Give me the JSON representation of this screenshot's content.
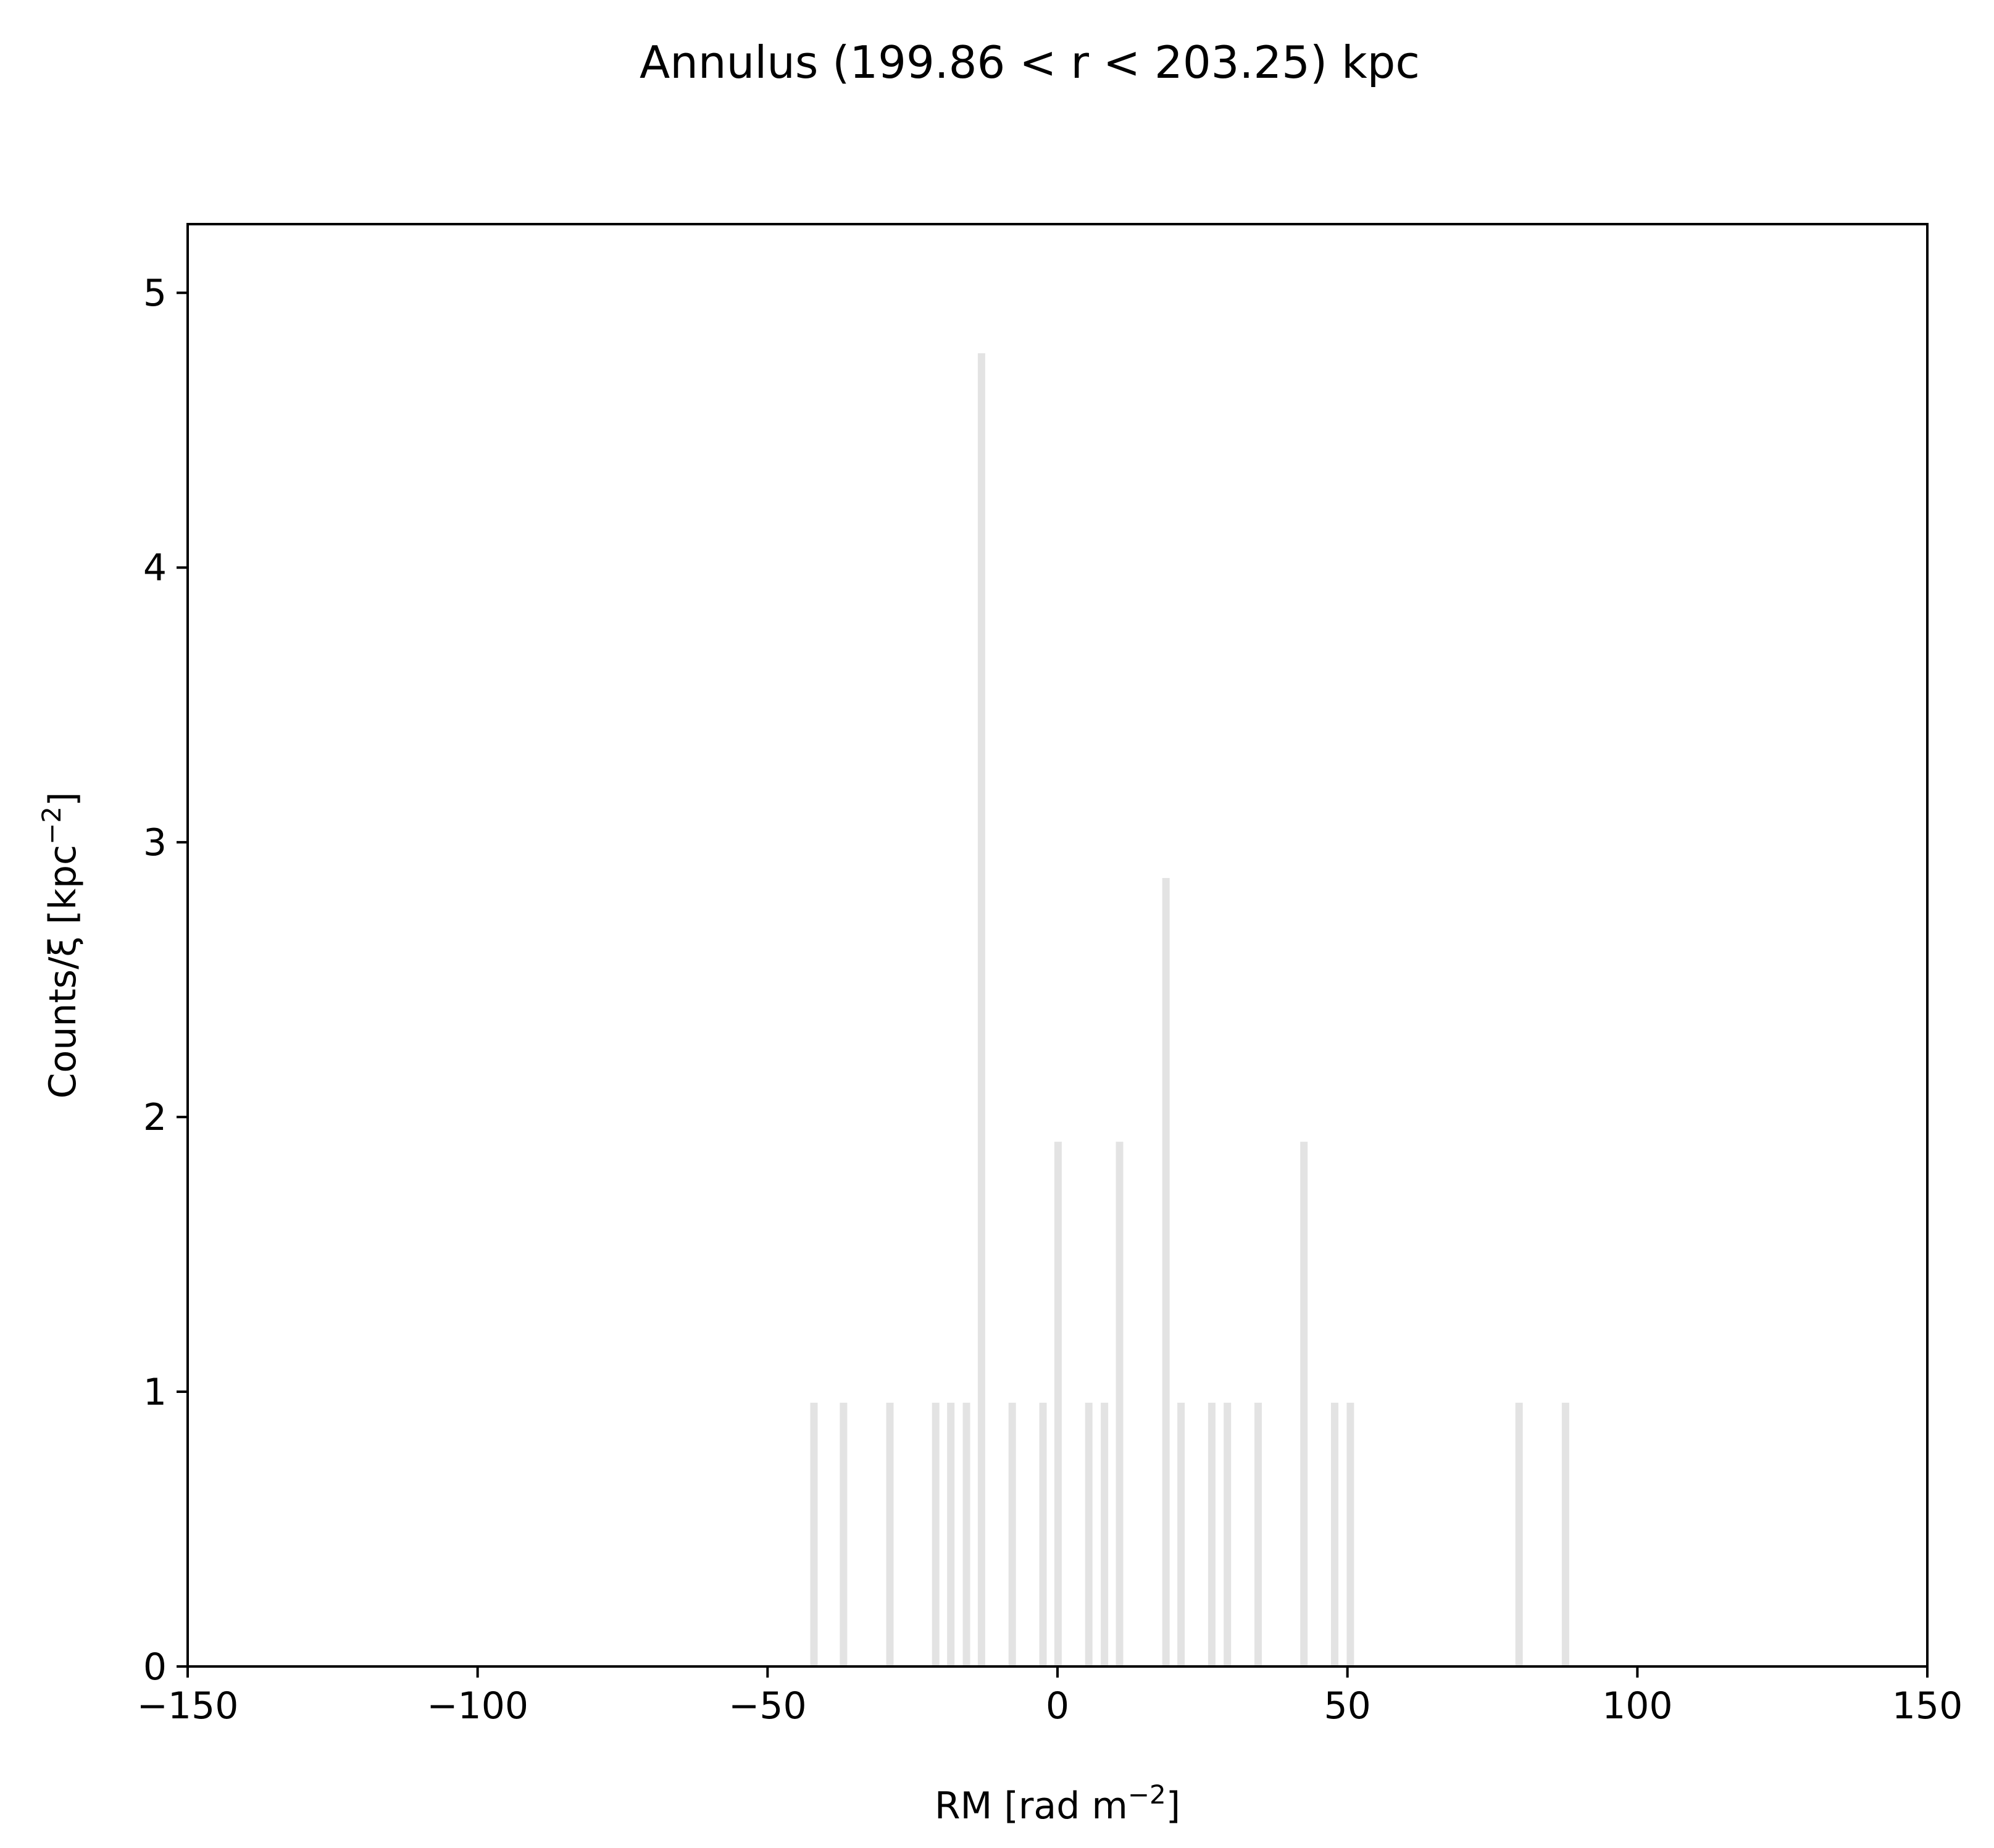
{
  "chart_data": {
    "type": "bar",
    "title": "Annulus (199.86 < r < 203.25) kpc",
    "xlabel": {
      "text": "RM [rad m",
      "sup": "−2",
      "suffix": "]"
    },
    "ylabel": {
      "text": "Counts/ξ [kpc",
      "sup": "−2",
      "suffix": "]"
    },
    "xlim": [
      -150,
      150
    ],
    "ylim": [
      0,
      5.25
    ],
    "xticks": [
      -150,
      -100,
      -50,
      0,
      50,
      100,
      150
    ],
    "xtick_labels": [
      "−150",
      "−100",
      "−50",
      "0",
      "50",
      "100",
      "150"
    ],
    "yticks": [
      0,
      1,
      2,
      3,
      4,
      5
    ],
    "ytick_labels": [
      "0",
      "1",
      "2",
      "3",
      "4",
      "5"
    ],
    "bar_color": "#e3e3e3",
    "grid": false,
    "legend": "none",
    "bars": [
      {
        "x": -42.0,
        "y": 0.96
      },
      {
        "x": -36.9,
        "y": 0.96
      },
      {
        "x": -28.9,
        "y": 0.96
      },
      {
        "x": -21.0,
        "y": 0.96
      },
      {
        "x": -18.4,
        "y": 0.96
      },
      {
        "x": -15.7,
        "y": 0.96
      },
      {
        "x": -13.1,
        "y": 4.78
      },
      {
        "x": -7.8,
        "y": 0.96
      },
      {
        "x": -2.5,
        "y": 0.96
      },
      {
        "x": 0.1,
        "y": 1.91
      },
      {
        "x": 5.4,
        "y": 0.96
      },
      {
        "x": 8.1,
        "y": 0.96
      },
      {
        "x": 10.7,
        "y": 1.91
      },
      {
        "x": 18.7,
        "y": 2.87
      },
      {
        "x": 21.3,
        "y": 0.96
      },
      {
        "x": 26.6,
        "y": 0.96
      },
      {
        "x": 29.3,
        "y": 0.96
      },
      {
        "x": 34.6,
        "y": 0.96
      },
      {
        "x": 42.5,
        "y": 1.91
      },
      {
        "x": 47.8,
        "y": 0.96
      },
      {
        "x": 50.5,
        "y": 0.96
      },
      {
        "x": 79.6,
        "y": 0.96
      },
      {
        "x": 87.6,
        "y": 0.96
      }
    ]
  }
}
